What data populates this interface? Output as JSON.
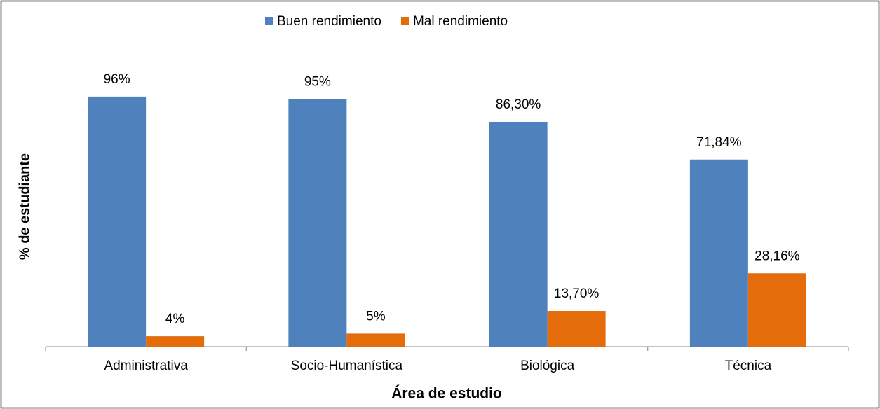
{
  "chart_data": {
    "type": "bar",
    "x_label": "Área de estudio",
    "y_label": "% de estudiante",
    "categories": [
      "Administrativa",
      "Socio-Humanística",
      "Biológica",
      "Técnica"
    ],
    "series": [
      {
        "name": "Buen rendimiento",
        "color": "#4f81bd",
        "values": [
          96,
          95,
          86.3,
          71.84
        ],
        "value_labels": [
          "96%",
          "95%",
          "86,30%",
          "71,84%"
        ]
      },
      {
        "name": "Mal rendimiento",
        "color": "#e46c0a",
        "values": [
          4,
          5,
          13.7,
          28.16
        ],
        "value_labels": [
          "4%",
          "5%",
          "13,70%",
          "28,16%"
        ]
      }
    ],
    "ylim": [
      0,
      100
    ],
    "legend": "top"
  }
}
